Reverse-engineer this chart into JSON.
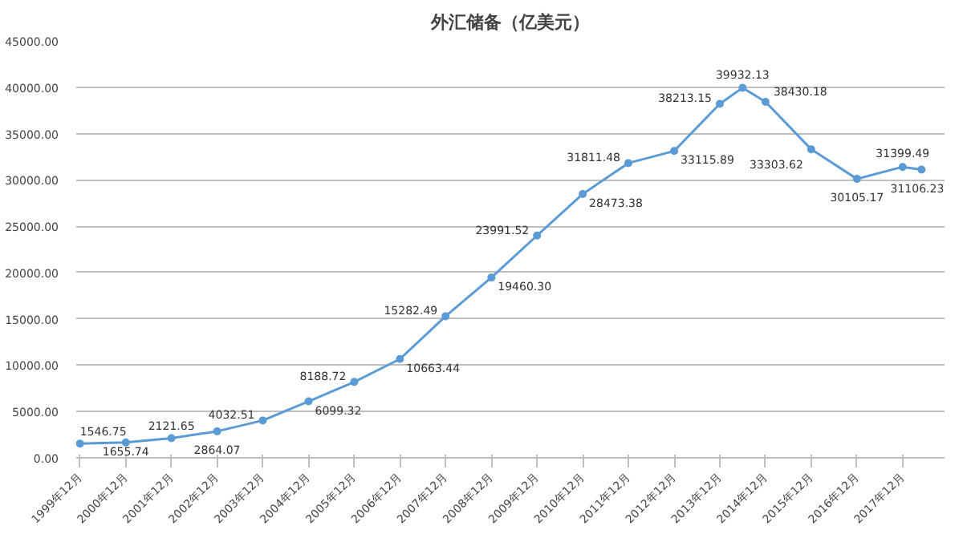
{
  "chart_data": {
    "type": "line",
    "title": "外汇储备（亿美元）",
    "x": [
      "1999-12",
      "2000-12",
      "2001-12",
      "2002-12",
      "2003-12",
      "2004-12",
      "2005-12",
      "2006-12",
      "2007-12",
      "2008-12",
      "2009-12",
      "2010-12",
      "2011-12",
      "2012-12",
      "2013-12",
      "2014-06",
      "2014-12",
      "2015-12",
      "2016-12",
      "2017-12",
      "2018-05"
    ],
    "series": [
      {
        "color": "#5b9bd5",
        "values": [
          1546.75,
          1655.74,
          2121.65,
          2864.07,
          4032.51,
          6099.32,
          8188.72,
          10663.44,
          15282.49,
          19460.3,
          23991.52,
          28473.38,
          31811.48,
          33115.89,
          38213.15,
          39932.13,
          38430.18,
          33303.62,
          30105.17,
          31399.49,
          31106.23
        ]
      }
    ],
    "xlim": [
      "1999-11",
      "2018-11"
    ],
    "xticks": [
      {
        "value": "1999-12",
        "label": "1999年12月"
      },
      {
        "value": "2000-12",
        "label": "2000年12月"
      },
      {
        "value": "2001-12",
        "label": "2001年12月"
      },
      {
        "value": "2002-12",
        "label": "2002年12月"
      },
      {
        "value": "2003-12",
        "label": "2003年12月"
      },
      {
        "value": "2004-12",
        "label": "2004年12月"
      },
      {
        "value": "2005-12",
        "label": "2005年12月"
      },
      {
        "value": "2006-12",
        "label": "2006年12月"
      },
      {
        "value": "2007-12",
        "label": "2007年12月"
      },
      {
        "value": "2008-12",
        "label": "2008年12月"
      },
      {
        "value": "2009-12",
        "label": "2009年12月"
      },
      {
        "value": "2010-12",
        "label": "2010年12月"
      },
      {
        "value": "2011-12",
        "label": "2011年12月"
      },
      {
        "value": "2012-12",
        "label": "2012年12月"
      },
      {
        "value": "2013-12",
        "label": "2013年12月"
      },
      {
        "value": "2014-12",
        "label": "2014年12月"
      },
      {
        "value": "2015-12",
        "label": "2015年12月"
      },
      {
        "value": "2016-12",
        "label": "2016年12月"
      },
      {
        "value": "2017-12",
        "label": "2017年12月"
      }
    ],
    "ylim": [
      0,
      45000
    ],
    "yticks": [
      {
        "value": 0,
        "label": "0.00"
      },
      {
        "value": 5000,
        "label": "5000.00"
      },
      {
        "value": 10000,
        "label": "10000.00"
      },
      {
        "value": 15000,
        "label": "15000.00"
      },
      {
        "value": 20000,
        "label": "20000.00"
      },
      {
        "value": 25000,
        "label": "25000.00"
      },
      {
        "value": 30000,
        "label": "30000.00"
      },
      {
        "value": 35000,
        "label": "35000.00"
      },
      {
        "value": 40000,
        "label": "40000.00"
      },
      {
        "value": 45000,
        "label": "45000.00"
      }
    ],
    "value_labels": [
      "1546.75",
      "1655.74",
      "2121.65",
      "2864.07",
      "4032.51",
      "6099.32",
      "8188.72",
      "10663.44",
      "15282.49",
      "19460.30",
      "23991.52",
      "28473.38",
      "31811.48",
      "33115.89",
      "38213.15",
      "39932.13",
      "38430.18",
      "33303.62",
      "30105.17",
      "31399.49",
      "31106.23"
    ],
    "grid": "y",
    "marker": "circle",
    "line_style": "solid",
    "legend": false
  }
}
